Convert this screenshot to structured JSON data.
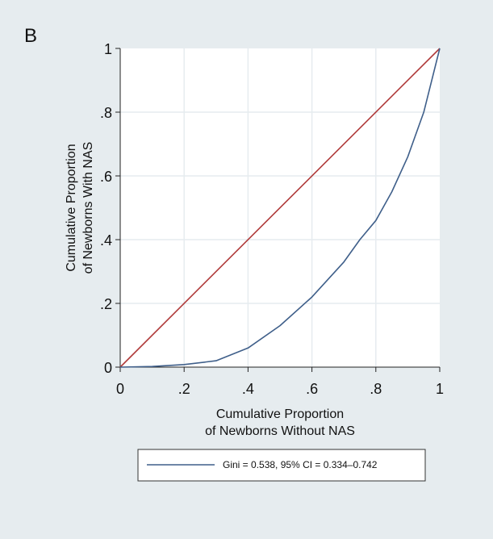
{
  "panel_label": "B",
  "chart_data": {
    "type": "line",
    "xlabel": [
      "Cumulative Proportion",
      "of Newborns Without NAS"
    ],
    "ylabel": [
      "Cumulative Proportion",
      "of Newborns With NAS"
    ],
    "xlim": [
      0,
      1
    ],
    "ylim": [
      0,
      1
    ],
    "x_ticks": [
      0,
      0.2,
      0.4,
      0.6,
      0.8,
      1
    ],
    "y_ticks": [
      0,
      0.2,
      0.4,
      0.6,
      0.8,
      1
    ],
    "x_tick_labels": [
      "0",
      ".2",
      ".4",
      ".6",
      ".8",
      "1"
    ],
    "y_tick_labels": [
      "0",
      ".2",
      ".4",
      ".6",
      ".8",
      "1"
    ],
    "grid": true,
    "legend_position": "bottom",
    "series": [
      {
        "name": "Gini = 0.538, 95% CI = 0.334–0.742",
        "color": "#3f5f8a",
        "x": [
          0,
          0.1,
          0.2,
          0.3,
          0.4,
          0.5,
          0.6,
          0.7,
          0.75,
          0.8,
          0.85,
          0.9,
          0.95,
          1
        ],
        "y": [
          0,
          0.002,
          0.008,
          0.02,
          0.06,
          0.13,
          0.22,
          0.33,
          0.4,
          0.46,
          0.55,
          0.66,
          0.8,
          1
        ]
      },
      {
        "name": "",
        "color": "#b03a3a",
        "x": [
          0,
          1
        ],
        "y": [
          0,
          1
        ]
      }
    ]
  }
}
